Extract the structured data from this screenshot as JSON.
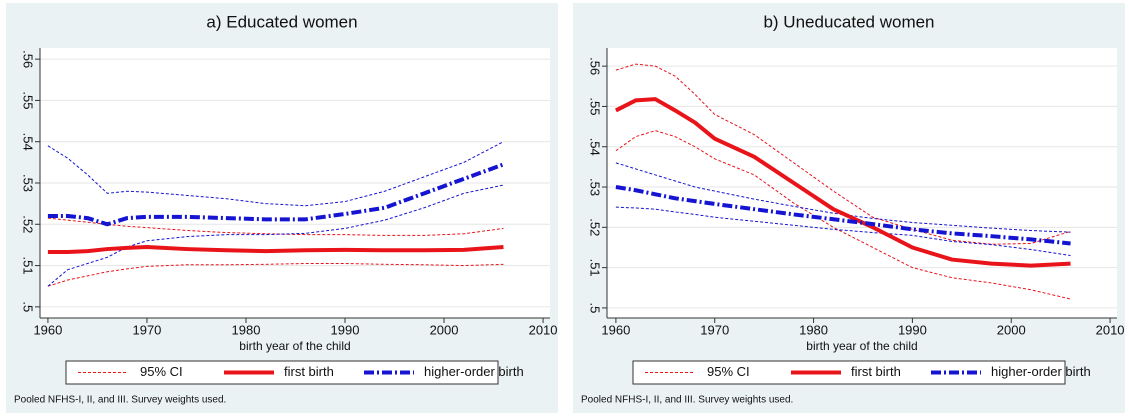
{
  "chart_data": [
    {
      "type": "line",
      "title": "a) Educated women",
      "xlabel": "birth year of the child",
      "note": "Pooled NFHS-I, II, and III. Survey weights used.",
      "ci_name": "95% CI",
      "x": [
        1960,
        1962,
        1964,
        1966,
        1968,
        1970,
        1974,
        1978,
        1982,
        1986,
        1990,
        1994,
        1998,
        2002,
        2006
      ],
      "series": [
        {
          "name": "first birth",
          "color": "#e8141a",
          "values": [
            0.5133,
            0.5133,
            0.5135,
            0.514,
            0.5143,
            0.5145,
            0.514,
            0.5137,
            0.5135,
            0.5137,
            0.5138,
            0.5137,
            0.5137,
            0.5138,
            0.5145
          ],
          "ci_low": [
            0.505,
            0.5065,
            0.5075,
            0.5085,
            0.5092,
            0.5098,
            0.5102,
            0.5102,
            0.5103,
            0.5105,
            0.5105,
            0.5103,
            0.5102,
            0.51,
            0.5103
          ],
          "ci_high": [
            0.5215,
            0.521,
            0.5205,
            0.52,
            0.5195,
            0.5192,
            0.5185,
            0.518,
            0.5177,
            0.5175,
            0.5175,
            0.5173,
            0.5173,
            0.5177,
            0.519
          ]
        },
        {
          "name": "higher-order birth",
          "color": "#1414d2",
          "values": [
            0.522,
            0.522,
            0.5215,
            0.52,
            0.5215,
            0.5218,
            0.5218,
            0.5215,
            0.5212,
            0.5212,
            0.5225,
            0.524,
            0.5275,
            0.531,
            0.5345
          ],
          "ci_low": [
            0.505,
            0.509,
            0.5105,
            0.512,
            0.5145,
            0.516,
            0.517,
            0.5175,
            0.5175,
            0.5178,
            0.519,
            0.521,
            0.524,
            0.5275,
            0.5295
          ],
          "ci_high": [
            0.539,
            0.536,
            0.532,
            0.5275,
            0.528,
            0.5278,
            0.527,
            0.5262,
            0.525,
            0.5245,
            0.5255,
            0.528,
            0.5315,
            0.535,
            0.54
          ]
        }
      ],
      "xlim": [
        1959.2,
        2010.7
      ],
      "xticks": [
        1960,
        1970,
        1980,
        1990,
        2000,
        2010
      ],
      "ylim": [
        0.4973,
        0.5627
      ],
      "yticks": [
        {
          "value": 0.5,
          "label": ".5"
        },
        {
          "value": 0.51,
          "label": ".51"
        },
        {
          "value": 0.52,
          "label": ".52"
        },
        {
          "value": 0.53,
          "label": ".53"
        },
        {
          "value": 0.54,
          "label": ".54"
        },
        {
          "value": 0.55,
          "label": ".55"
        },
        {
          "value": 0.56,
          "label": ".56"
        }
      ],
      "grid": true
    },
    {
      "type": "line",
      "title": "b) Uneducated women",
      "xlabel": "birth year of the child",
      "note": "Pooled NFHS-I, II, and III. Survey weights used.",
      "ci_name": "95% CI",
      "x": [
        1960,
        1962,
        1964,
        1966,
        1968,
        1970,
        1974,
        1978,
        1982,
        1986,
        1990,
        1994,
        1998,
        2002,
        2006
      ],
      "series": [
        {
          "name": "first birth",
          "color": "#e8141a",
          "values": [
            0.549,
            0.5515,
            0.5518,
            0.549,
            0.546,
            0.542,
            0.5375,
            0.531,
            0.5245,
            0.52,
            0.515,
            0.512,
            0.511,
            0.5105,
            0.511
          ],
          "ci_low": [
            0.539,
            0.5425,
            0.544,
            0.5425,
            0.54,
            0.537,
            0.533,
            0.526,
            0.52,
            0.515,
            0.51,
            0.5075,
            0.5062,
            0.5045,
            0.5022
          ],
          "ci_high": [
            0.559,
            0.5605,
            0.56,
            0.5575,
            0.553,
            0.548,
            0.543,
            0.536,
            0.529,
            0.5225,
            0.5195,
            0.5168,
            0.5158,
            0.516,
            0.519
          ]
        },
        {
          "name": "higher-order birth",
          "color": "#1414d2",
          "values": [
            0.53,
            0.5292,
            0.5282,
            0.5272,
            0.5265,
            0.5258,
            0.5245,
            0.5232,
            0.522,
            0.5208,
            0.5195,
            0.5185,
            0.5178,
            0.517,
            0.516
          ],
          "ci_low": [
            0.525,
            0.5248,
            0.5245,
            0.5238,
            0.5232,
            0.5225,
            0.5215,
            0.5205,
            0.5195,
            0.5187,
            0.518,
            0.5165,
            0.5157,
            0.5145,
            0.513
          ],
          "ci_high": [
            0.536,
            0.5345,
            0.533,
            0.5315,
            0.53,
            0.529,
            0.527,
            0.5252,
            0.5235,
            0.5222,
            0.5212,
            0.5205,
            0.5198,
            0.5192,
            0.5188
          ]
        }
      ],
      "xlim": [
        1959.1,
        2010.7
      ],
      "xticks": [
        1960,
        1970,
        1980,
        1990,
        2000,
        2010
      ],
      "ylim": [
        0.4975,
        0.5645
      ],
      "yticks": [
        {
          "value": 0.5,
          "label": ".5"
        },
        {
          "value": 0.51,
          "label": ".51"
        },
        {
          "value": 0.52,
          "label": ".52"
        },
        {
          "value": 0.53,
          "label": ".53"
        },
        {
          "value": 0.54,
          "label": ".54"
        },
        {
          "value": 0.55,
          "label": ".55"
        },
        {
          "value": 0.56,
          "label": ".56"
        }
      ],
      "grid": true
    }
  ]
}
